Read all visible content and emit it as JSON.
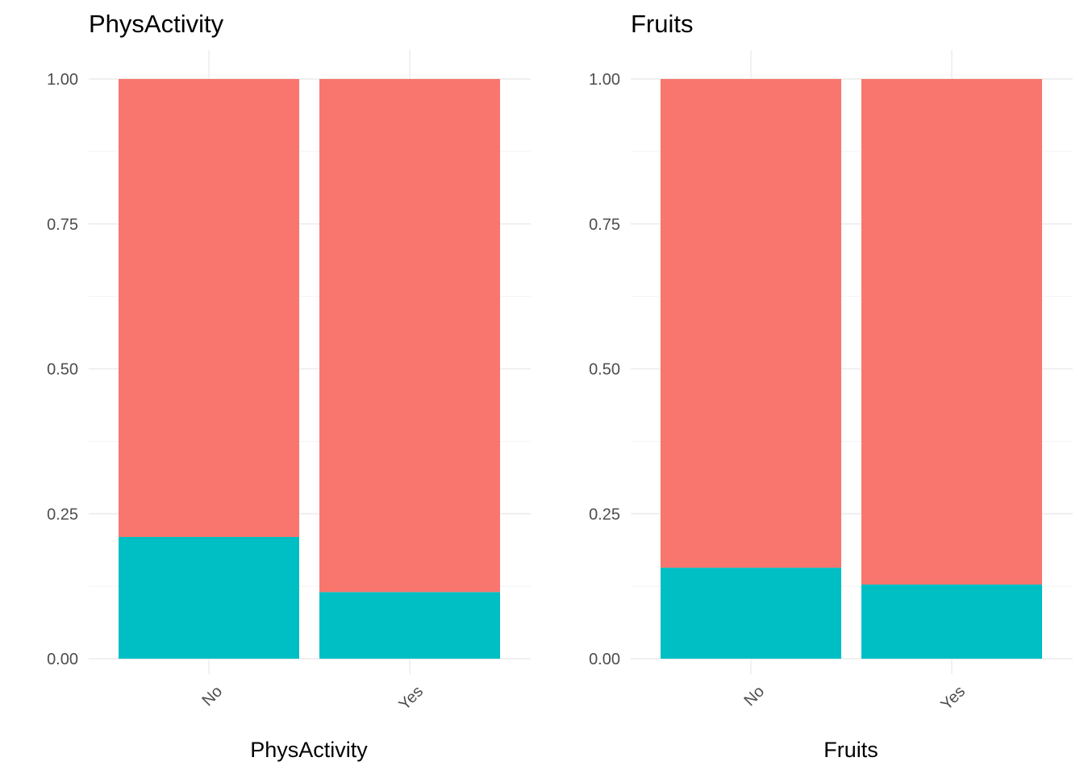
{
  "chart_data": [
    {
      "type": "bar",
      "stacked": true,
      "title": "PhysActivity",
      "xlabel": "PhysActivity",
      "ylabel": "",
      "categories": [
        "No",
        "Yes"
      ],
      "ylim": [
        0,
        1
      ],
      "yticks": [
        "0.00",
        "0.25",
        "0.50",
        "0.75",
        "1.00"
      ],
      "series": [
        {
          "color": "#00bfc4",
          "values": [
            0.21,
            0.115
          ]
        },
        {
          "color": "#f8766d",
          "values": [
            0.79,
            0.885
          ]
        }
      ],
      "grid": true,
      "legend": "none"
    },
    {
      "type": "bar",
      "stacked": true,
      "title": "Fruits",
      "xlabel": "Fruits",
      "ylabel": "",
      "categories": [
        "No",
        "Yes"
      ],
      "ylim": [
        0,
        1
      ],
      "yticks": [
        "0.00",
        "0.25",
        "0.50",
        "0.75",
        "1.00"
      ],
      "series": [
        {
          "color": "#00bfc4",
          "values": [
            0.157,
            0.128
          ]
        },
        {
          "color": "#f8766d",
          "values": [
            0.843,
            0.872
          ]
        }
      ],
      "grid": true,
      "legend": "none"
    }
  ]
}
